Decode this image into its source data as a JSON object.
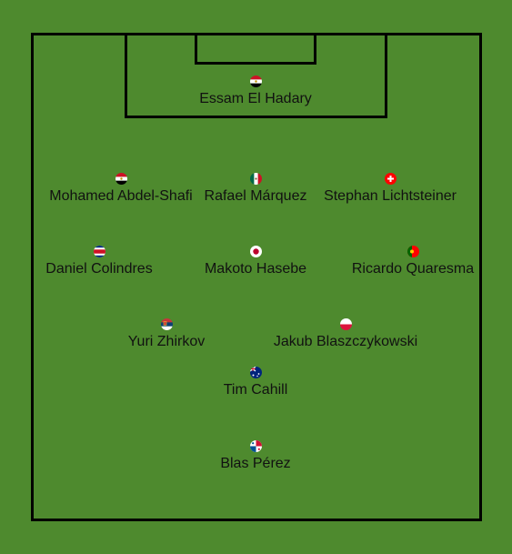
{
  "players": [
    {
      "name": "Essam El Hadary",
      "country": "egypt-flag-icon"
    },
    {
      "name": "Mohamed Abdel-Shafi",
      "country": "egypt-flag-icon"
    },
    {
      "name": "Rafael Márquez",
      "country": "mexico-flag-icon"
    },
    {
      "name": "Stephan Lichtsteiner",
      "country": "switzerland-flag-icon"
    },
    {
      "name": "Daniel Colindres",
      "country": "costa-rica-flag-icon"
    },
    {
      "name": "Makoto Hasebe",
      "country": "japan-flag-icon"
    },
    {
      "name": "Ricardo Quaresma",
      "country": "portugal-flag-icon"
    },
    {
      "name": "Yuri Zhirkov",
      "country": "serbia-flag-icon"
    },
    {
      "name": "Jakub Blaszczykowski",
      "country": "poland-flag-icon"
    },
    {
      "name": "Tim Cahill",
      "country": "australia-flag-icon"
    },
    {
      "name": "Blas Pérez",
      "country": "panama-flag-icon"
    }
  ],
  "colors": {
    "pitch": "#4e8a2e",
    "lines": "#000000",
    "text": "#111111"
  }
}
